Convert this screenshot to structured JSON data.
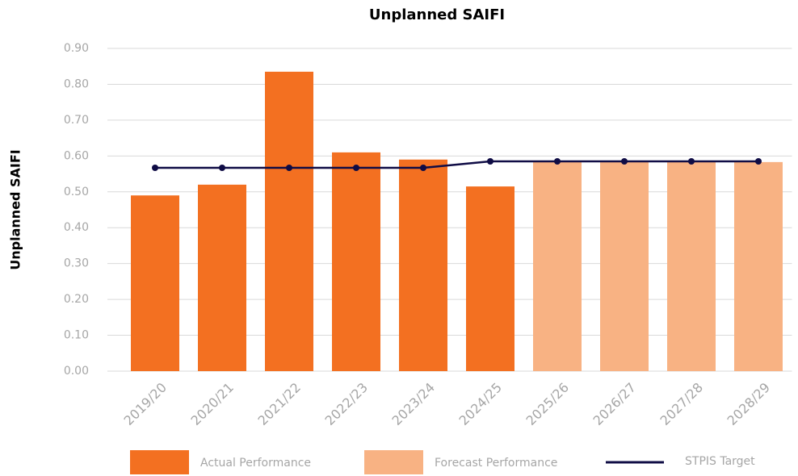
{
  "chart_data": {
    "type": "bar",
    "title": "Unplanned SAIFI",
    "y_label": "Unplanned SAIFI",
    "categories": [
      "2019/20",
      "2020/21",
      "2021/22",
      "2022/23",
      "2023/24",
      "2024/25",
      "2025/26",
      "2026/27",
      "2027/28",
      "2028/29"
    ],
    "series": [
      {
        "name": "Actual Performance",
        "type": "bar",
        "color": "#f37021",
        "values": [
          0.49,
          0.52,
          0.835,
          0.61,
          0.59,
          0.515,
          null,
          null,
          null,
          null
        ]
      },
      {
        "name": "Forecast Performance",
        "type": "bar",
        "color": "#f8b283",
        "values": [
          null,
          null,
          null,
          null,
          null,
          null,
          0.583,
          0.583,
          0.583,
          0.583
        ]
      },
      {
        "name": "STPIS Target",
        "type": "line",
        "color": "#0f0c45",
        "values": [
          0.567,
          0.567,
          0.567,
          0.567,
          0.567,
          0.585,
          0.585,
          0.585,
          0.585,
          0.585
        ]
      }
    ],
    "ylim": [
      0,
      0.9
    ],
    "yticks": [
      {
        "value": 0,
        "label": "0.00"
      },
      {
        "value": 0.1,
        "label": "0.10"
      },
      {
        "value": 0.2,
        "label": "0.20"
      },
      {
        "value": 0.3,
        "label": "0.30"
      },
      {
        "value": 0.4,
        "label": "0.40"
      },
      {
        "value": 0.5,
        "label": "0.50"
      },
      {
        "value": 0.6,
        "label": "0.60"
      },
      {
        "value": 0.7,
        "label": "0.70"
      },
      {
        "value": 0.8,
        "label": "0.80"
      },
      {
        "value": 0.9,
        "label": "0.90"
      }
    ],
    "grid": true,
    "legend": "bottom"
  }
}
